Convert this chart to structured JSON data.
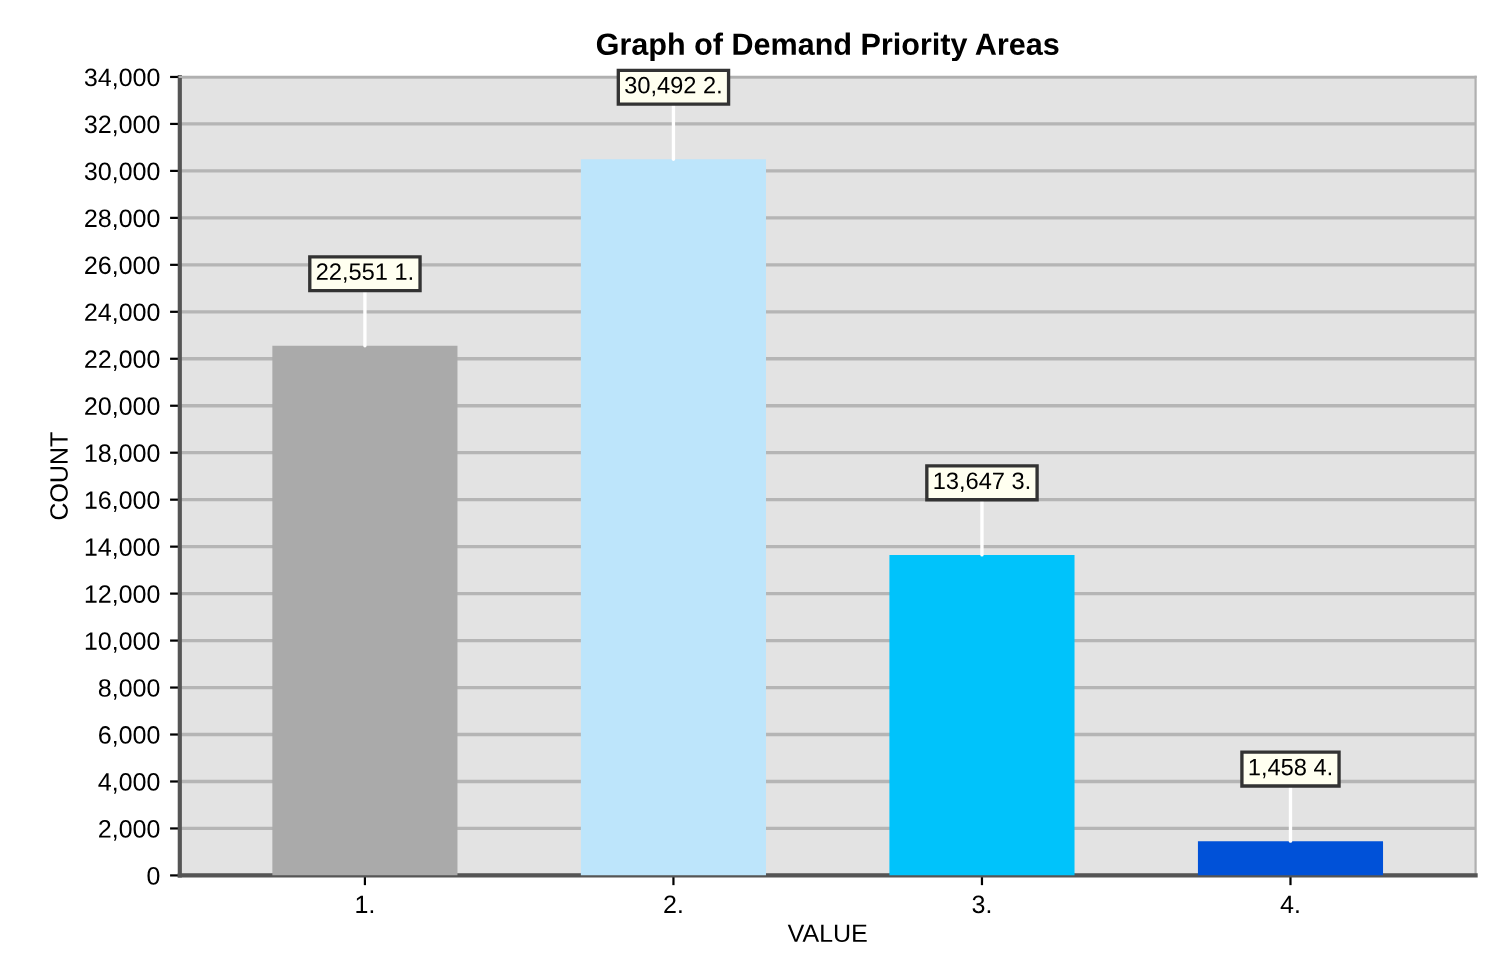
{
  "chart_data": {
    "type": "bar",
    "title": "Graph of Demand Priority Areas",
    "xlabel": "VALUE",
    "ylabel": "COUNT",
    "categories": [
      "1.",
      "2.",
      "3.",
      "4."
    ],
    "values": [
      22551,
      30492,
      13647,
      1458
    ],
    "colors": [
      "#aaaaaa",
      "#bde5fb",
      "#00c3fb",
      "#0051d8"
    ],
    "value_labels": [
      "22,551 1.",
      "30,492 2.",
      "13,647 3.",
      "1,458 4."
    ],
    "ylim": [
      0,
      34000
    ],
    "yticks": [
      {
        "value": 0,
        "label": "0"
      },
      {
        "value": 2000,
        "label": "2,000"
      },
      {
        "value": 4000,
        "label": "4,000"
      },
      {
        "value": 6000,
        "label": "6,000"
      },
      {
        "value": 8000,
        "label": "8,000"
      },
      {
        "value": 10000,
        "label": "10,000"
      },
      {
        "value": 12000,
        "label": "12,000"
      },
      {
        "value": 14000,
        "label": "14,000"
      },
      {
        "value": 16000,
        "label": "16,000"
      },
      {
        "value": 18000,
        "label": "18,000"
      },
      {
        "value": 20000,
        "label": "20,000"
      },
      {
        "value": 22000,
        "label": "22,000"
      },
      {
        "value": 24000,
        "label": "24,000"
      },
      {
        "value": 26000,
        "label": "26,000"
      },
      {
        "value": 28000,
        "label": "28,000"
      },
      {
        "value": 30000,
        "label": "30,000"
      },
      {
        "value": 32000,
        "label": "32,000"
      },
      {
        "value": 34000,
        "label": "34,000"
      }
    ],
    "grid": "y"
  }
}
